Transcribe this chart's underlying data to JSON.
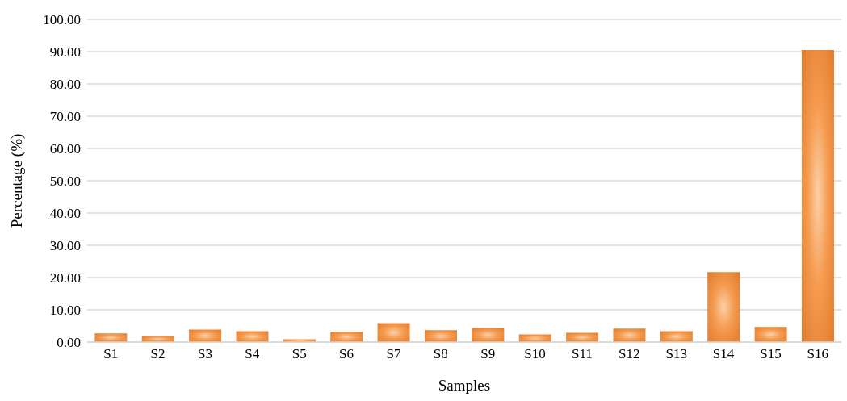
{
  "chart_data": {
    "type": "bar",
    "xlabel": "Samples",
    "ylabel": "Percentage (%)",
    "categories": [
      "S1",
      "S2",
      "S3",
      "S4",
      "S5",
      "S6",
      "S7",
      "S8",
      "S9",
      "S10",
      "S11",
      "S12",
      "S13",
      "S14",
      "S15",
      "S16"
    ],
    "values": [
      2.7,
      1.9,
      3.9,
      3.4,
      0.9,
      3.2,
      5.9,
      3.7,
      4.4,
      2.4,
      2.9,
      4.2,
      3.4,
      21.7,
      4.7,
      90.5
    ],
    "color": "#e07b2e",
    "ylim": [
      0,
      100
    ],
    "yticks": [
      {
        "value": 0,
        "label": "0.00"
      },
      {
        "value": 10,
        "label": "10.00"
      },
      {
        "value": 20,
        "label": "20.00"
      },
      {
        "value": 30,
        "label": "30.00"
      },
      {
        "value": 40,
        "label": "40.00"
      },
      {
        "value": 50,
        "label": "50.00"
      },
      {
        "value": 60,
        "label": "60.00"
      },
      {
        "value": 70,
        "label": "70.00"
      },
      {
        "value": 80,
        "label": "80.00"
      },
      {
        "value": 90,
        "label": "90.00"
      },
      {
        "value": 100,
        "label": "100.00"
      }
    ],
    "grid": "y"
  }
}
